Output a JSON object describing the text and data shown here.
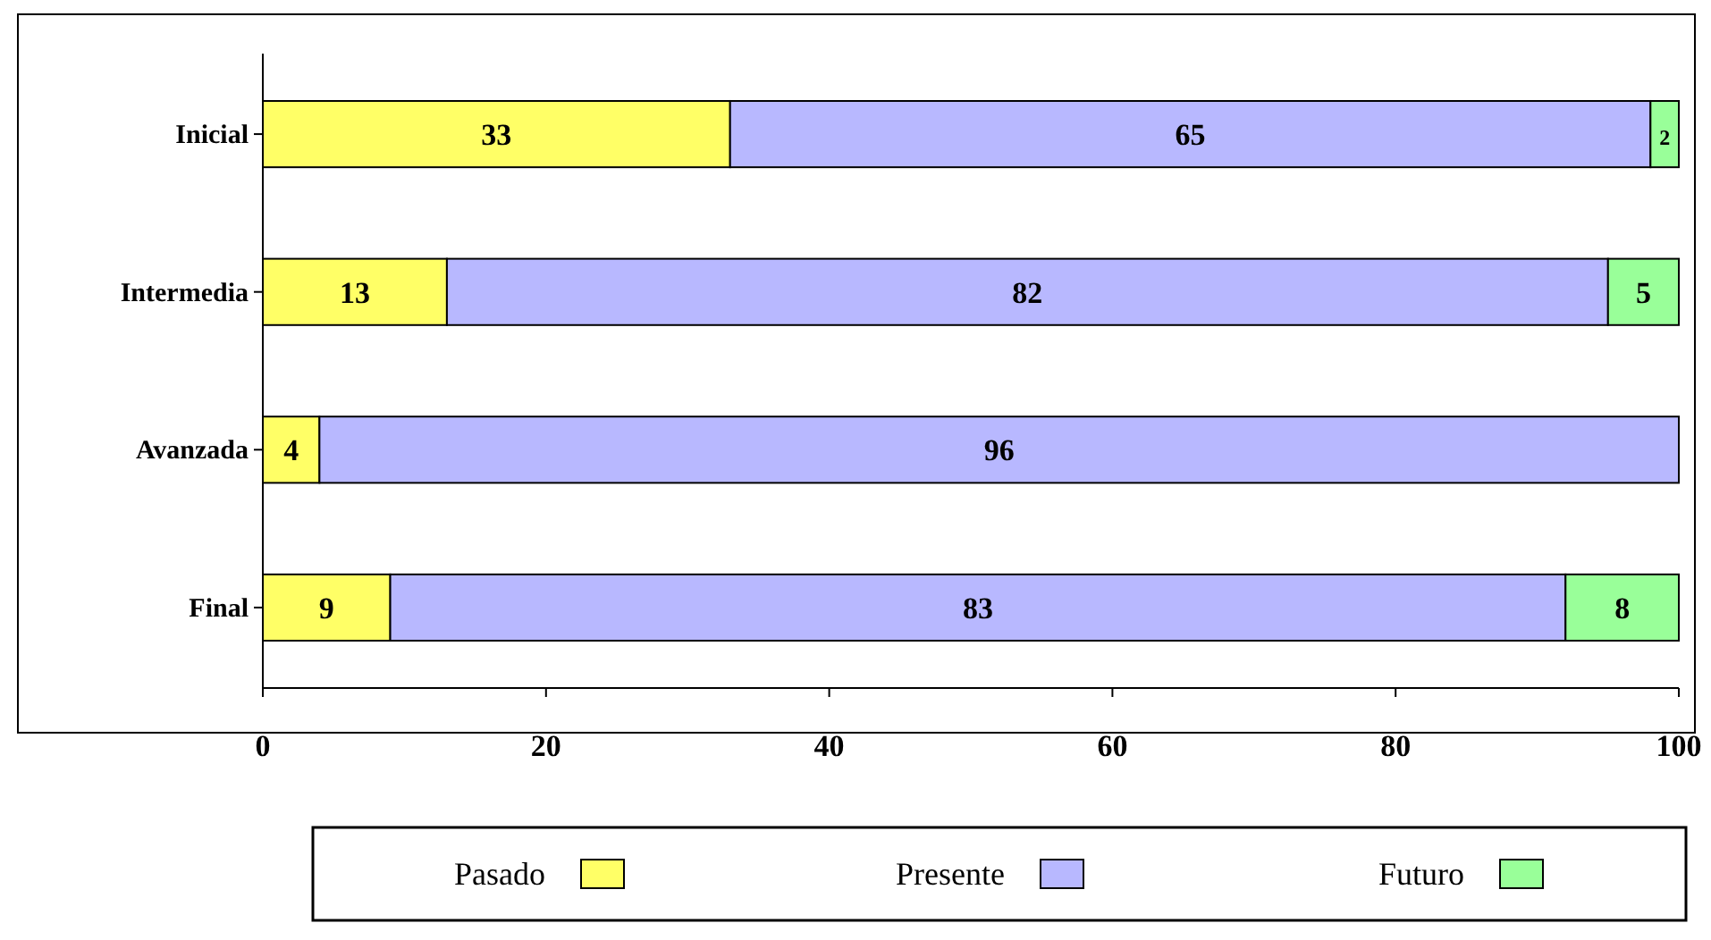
{
  "chart_data": {
    "type": "bar",
    "orientation": "horizontal",
    "stacked": true,
    "categories": [
      "Inicial",
      "Intermedia",
      "Avanzada",
      "Final"
    ],
    "series": [
      {
        "name": "Pasado",
        "color": "#ffff66",
        "values": [
          33,
          13,
          4,
          9
        ]
      },
      {
        "name": "Presente",
        "color": "#b8b8ff",
        "values": [
          65,
          82,
          96,
          83
        ]
      },
      {
        "name": "Futuro",
        "color": "#99ff99",
        "values": [
          2,
          5,
          null,
          8
        ]
      }
    ],
    "xlim": [
      0,
      100
    ],
    "xticks": [
      0,
      20,
      40,
      60,
      80,
      100
    ],
    "data_labels": true,
    "legend": "bottom",
    "grid": false
  }
}
